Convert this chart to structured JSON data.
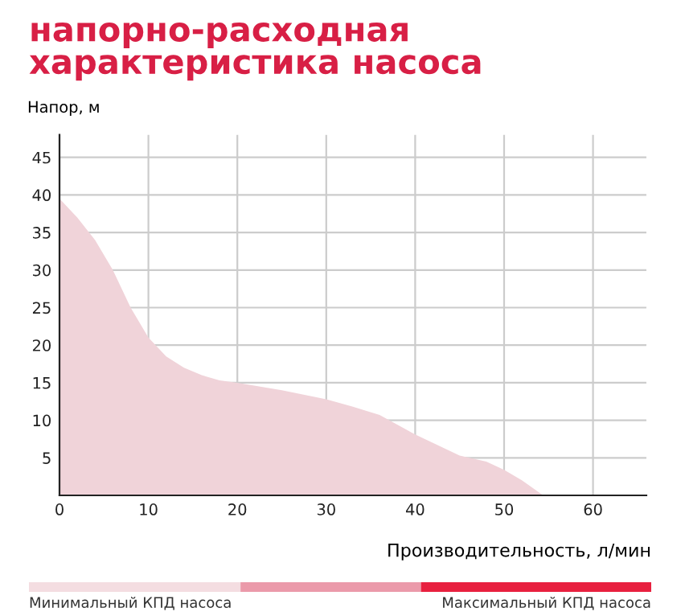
{
  "chart_data": {
    "type": "area",
    "title": "напорно-расходная\nхарактеристика насоса",
    "xlabel": "Производительность, л/мин",
    "ylabel": "Напор, м",
    "x": [
      0,
      2,
      4,
      6,
      8,
      10,
      12,
      14,
      16,
      18,
      20,
      25,
      30,
      33,
      36,
      40,
      45,
      48,
      50,
      52,
      54.4
    ],
    "series": [
      {
        "color": "#f0d3d9",
        "values": [
          39.5,
          37,
          34,
          30,
          25,
          21,
          18.5,
          17,
          16,
          15.3,
          15,
          14,
          12.8,
          11.8,
          10.7,
          8.1,
          5.3,
          4.5,
          3.4,
          2,
          0
        ]
      }
    ],
    "xlim": [
      0,
      66
    ],
    "ylim": [
      0,
      48
    ],
    "xticks": [
      0,
      10,
      20,
      30,
      40,
      50,
      60
    ],
    "yticks": [
      5,
      10,
      15,
      20,
      25,
      30,
      35,
      40,
      45
    ],
    "grid": true,
    "annotations": [
      "Минимальный КПД насоса",
      "Максимальный КПД насоса"
    ]
  }
}
